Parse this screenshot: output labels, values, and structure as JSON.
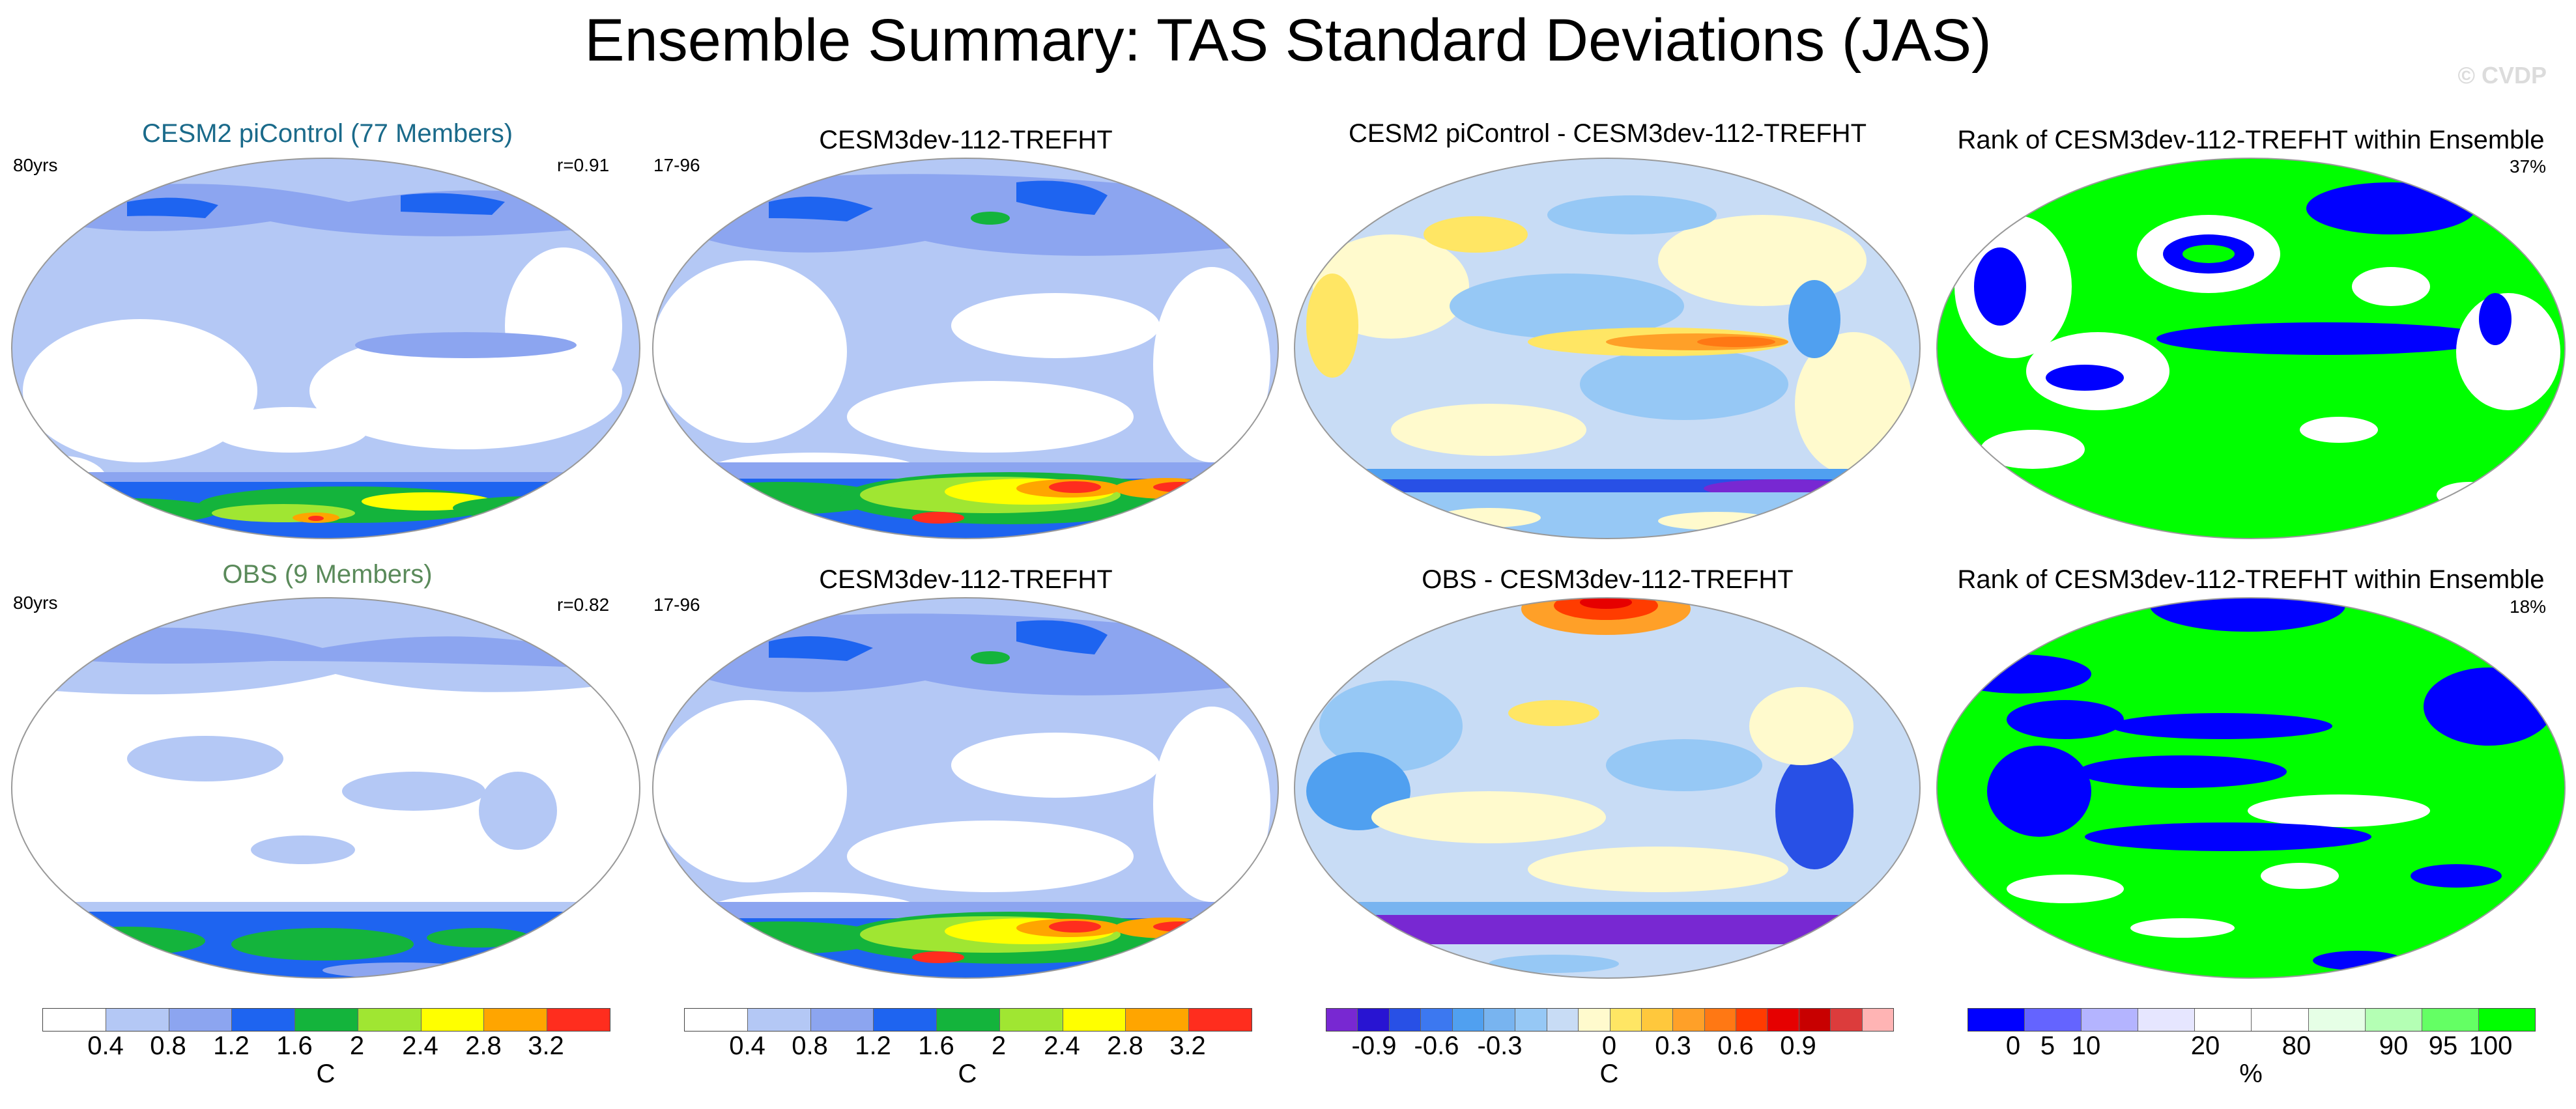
{
  "title": "Ensemble Summary: TAS Standard Deviations (JAS)",
  "watermark": "© CVDP",
  "panels": {
    "r1c1": {
      "title": "CESM2 piControl (77 Members)",
      "left": "80yrs",
      "right": "r=0.91",
      "title_color": "#1a6a8a"
    },
    "r1c2": {
      "title": "CESM3dev-112-TREFHT",
      "left": "17-96",
      "right": ""
    },
    "r1c3": {
      "title": "CESM2 piControl - CESM3dev-112-TREFHT",
      "left": "",
      "right": ""
    },
    "r1c4": {
      "title": "Rank of CESM3dev-112-TREFHT within Ensemble",
      "left": "",
      "right": "37%"
    },
    "r2c1": {
      "title": "OBS (9 Members)",
      "left": "80yrs",
      "right": "r=0.82",
      "title_color": "#5a8a5a"
    },
    "r2c2": {
      "title": "CESM3dev-112-TREFHT",
      "left": "17-96",
      "right": ""
    },
    "r2c3": {
      "title": "OBS - CESM3dev-112-TREFHT",
      "left": "",
      "right": ""
    },
    "r2c4": {
      "title": "Rank of CESM3dev-112-TREFHT within Ensemble",
      "left": "",
      "right": "18%"
    }
  },
  "colorbars": {
    "std": {
      "colors": [
        "#ffffff",
        "#b4c8f5",
        "#8ca5f0",
        "#1e64f0",
        "#14b43c",
        "#a0e632",
        "#ffff00",
        "#ffa500",
        "#ff2d1e"
      ],
      "ticks": [
        "0.4",
        "0.8",
        "1.2",
        "1.6",
        "2",
        "2.4",
        "2.8",
        "3.2"
      ],
      "unit": "C"
    },
    "diff": {
      "colors": [
        "#7828d2",
        "#2814d2",
        "#2850e6",
        "#3c78f0",
        "#50a0f0",
        "#78b4f0",
        "#96c8f5",
        "#c8dcf5",
        "#fffacd",
        "#ffe664",
        "#ffc83c",
        "#ffa028",
        "#ff7814",
        "#ff3c00",
        "#e60000",
        "#c80000",
        "#dc3c3c",
        "#ffb4b4"
      ],
      "ticks": [
        "-0.9",
        "-0.6",
        "-0.3",
        "0",
        "0.3",
        "0.6",
        "0.9"
      ],
      "unit": "C"
    },
    "rank": {
      "colors": [
        "#0000ff",
        "#6464ff",
        "#b4b4ff",
        "#e6e6ff",
        "#ffffff",
        "#ffffff",
        "#e6ffe6",
        "#b4ffb4",
        "#64ff64",
        "#00ff00"
      ],
      "ticks": [
        "0",
        "5",
        "10",
        "20",
        "80",
        "90",
        "95",
        "100"
      ],
      "unit": "%"
    }
  }
}
